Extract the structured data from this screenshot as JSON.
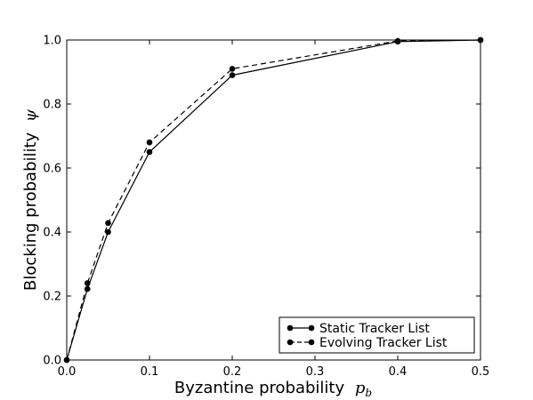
{
  "chart_data": {
    "type": "line",
    "xlabel": "Byzantine probability",
    "xlabel_symbol": "p",
    "xlabel_subscript": "b",
    "ylabel": "Blocking probability",
    "ylabel_symbol": "ψ",
    "xlim": [
      0.0,
      0.5
    ],
    "ylim": [
      0.0,
      1.0
    ],
    "x_ticks": [
      0.0,
      0.1,
      0.2,
      0.3,
      0.4,
      0.5
    ],
    "x_tick_labels": [
      "0.0",
      "0.1",
      "0.2",
      "0.3",
      "0.4",
      "0.5"
    ],
    "y_ticks": [
      0.0,
      0.2,
      0.4,
      0.6,
      0.8,
      1.0
    ],
    "y_tick_labels": [
      "0.0",
      "0.2",
      "0.4",
      "0.6",
      "0.8",
      "1.0"
    ],
    "grid": false,
    "legend_position": "bottom-right",
    "series": [
      {
        "name": "Static Tracker List",
        "line_style": "solid",
        "marker": "circle",
        "color": "#000000",
        "x": [
          0.0,
          0.025,
          0.05,
          0.1,
          0.2,
          0.4,
          0.5
        ],
        "y": [
          0.0,
          0.222,
          0.4,
          0.65,
          0.89,
          0.995,
          1.0
        ]
      },
      {
        "name": "Evolving Tracker List",
        "line_style": "dashed",
        "marker": "circle",
        "color": "#000000",
        "x": [
          0.0,
          0.025,
          0.05,
          0.1,
          0.2,
          0.4,
          0.5
        ],
        "y": [
          0.0,
          0.24,
          0.428,
          0.68,
          0.91,
          0.997,
          1.0
        ]
      }
    ]
  }
}
